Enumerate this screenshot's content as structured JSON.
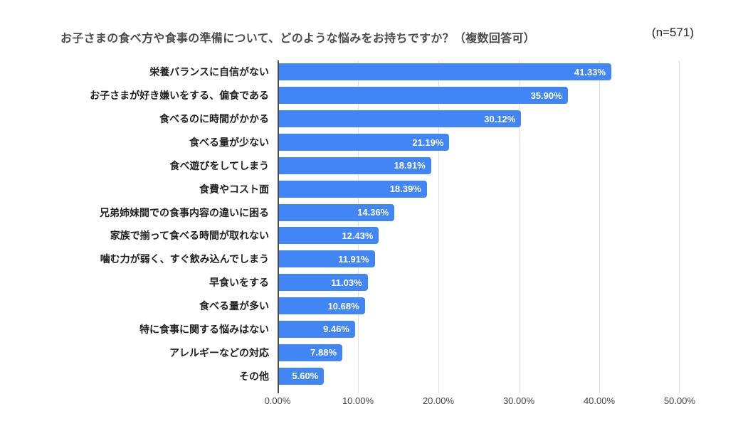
{
  "title": "お子さまの食べ方や食事の準備について、どのような悩みをお持ちですか？（複数回答可）",
  "sample_size": "(n=571)",
  "chart_data": {
    "type": "bar",
    "orientation": "horizontal",
    "title": "お子さまの食べ方や食事の準備について、どのような悩みをお持ちですか？（複数回答可）",
    "sample_size_label": "(n=571)",
    "categories": [
      "栄養バランスに自信がない",
      "お子さまが好き嫌いをする、偏食である",
      "食べるのに時間がかかる",
      "食べる量が少ない",
      "食べ遊びをしてしまう",
      "食費やコスト面",
      "兄弟姉妹間での食事内容の違いに困る",
      "家族で揃って食べる時間が取れない",
      "噛む力が弱く、すぐ飲み込んでしまう",
      "早食いをする",
      "食べる量が多い",
      "特に食事に関する悩みはない",
      "アレルギーなどの対応",
      "その他"
    ],
    "values": [
      41.33,
      35.9,
      30.12,
      21.19,
      18.91,
      18.39,
      14.36,
      12.43,
      11.91,
      11.03,
      10.68,
      9.46,
      7.88,
      5.6
    ],
    "value_labels": [
      "41.33%",
      "35.90%",
      "30.12%",
      "21.19%",
      "18.91%",
      "18.39%",
      "14.36%",
      "12.43%",
      "11.91%",
      "11.03%",
      "10.68%",
      "9.46%",
      "7.88%",
      "5.60%"
    ],
    "x_axis_ticks": [
      "0.00%",
      "10.00%",
      "20.00%",
      "30.00%",
      "40.00%",
      "50.00%"
    ],
    "xlim": [
      0,
      50
    ],
    "xlabel": "",
    "ylabel": "",
    "bar_color": "#4285f4",
    "value_label_color": "#ffffff",
    "gridlines": true,
    "legend_position": "none"
  }
}
